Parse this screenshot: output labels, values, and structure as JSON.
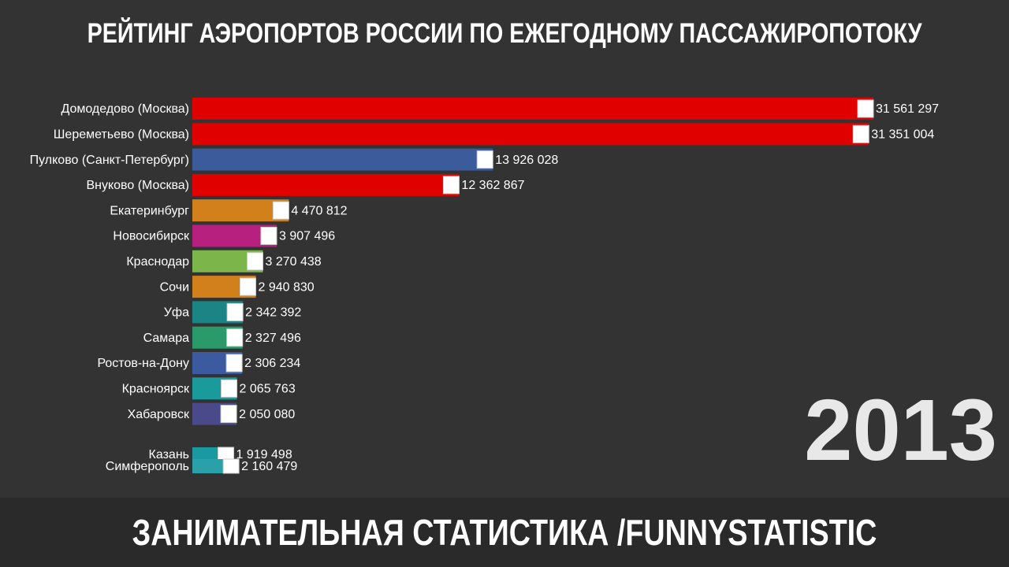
{
  "chart_data": {
    "type": "bar",
    "orientation": "horizontal",
    "title": "РЕЙТИНГ АЭРОПОРТОВ РОССИИ ПО ЕЖЕГОДНОМУ ПАССАЖИРОПОТОКУ",
    "categories": [
      "Домодедово (Москва)",
      "Шереметьево (Москва)",
      "Пулково (Санкт-Петербург)",
      "Внуково (Москва)",
      "Екатеринбург",
      "Новосибирск",
      "Краснодар",
      "Сочи",
      "Уфа",
      "Самара",
      "Ростов-на-Дону",
      "Красноярск",
      "Хабаровск",
      "Казань",
      "Симферополь"
    ],
    "values": [
      31561297,
      31351004,
      13926028,
      12362867,
      4470812,
      3907496,
      3270438,
      2940830,
      2342392,
      2327496,
      2306234,
      2065763,
      2050080,
      1919498,
      2160479
    ],
    "value_labels": [
      "31 561 297",
      "31 351 004",
      "13 926 028",
      "12 362 867",
      "4 470 812",
      "3 907 496",
      "3 270 438",
      "2 940 830",
      "2 342 392",
      "2 327 496",
      "2 306 234",
      "2 065 763",
      "2 050 080",
      "1 919 498",
      "2 160 479"
    ],
    "colors": [
      "#e00000",
      "#e00000",
      "#3b5b9b",
      "#e00000",
      "#d2801c",
      "#b8207f",
      "#7cb54a",
      "#d2801c",
      "#1b8585",
      "#2a9a6a",
      "#3b5aa0",
      "#1a9a9a",
      "#4a4a8a",
      "#1a9aa0",
      "#2aa0a8"
    ],
    "year": "2013",
    "footer": "ЗАНИМАТЕЛЬНАЯ СТАТИСТИКА  /FUNNYSTATISTIC"
  }
}
